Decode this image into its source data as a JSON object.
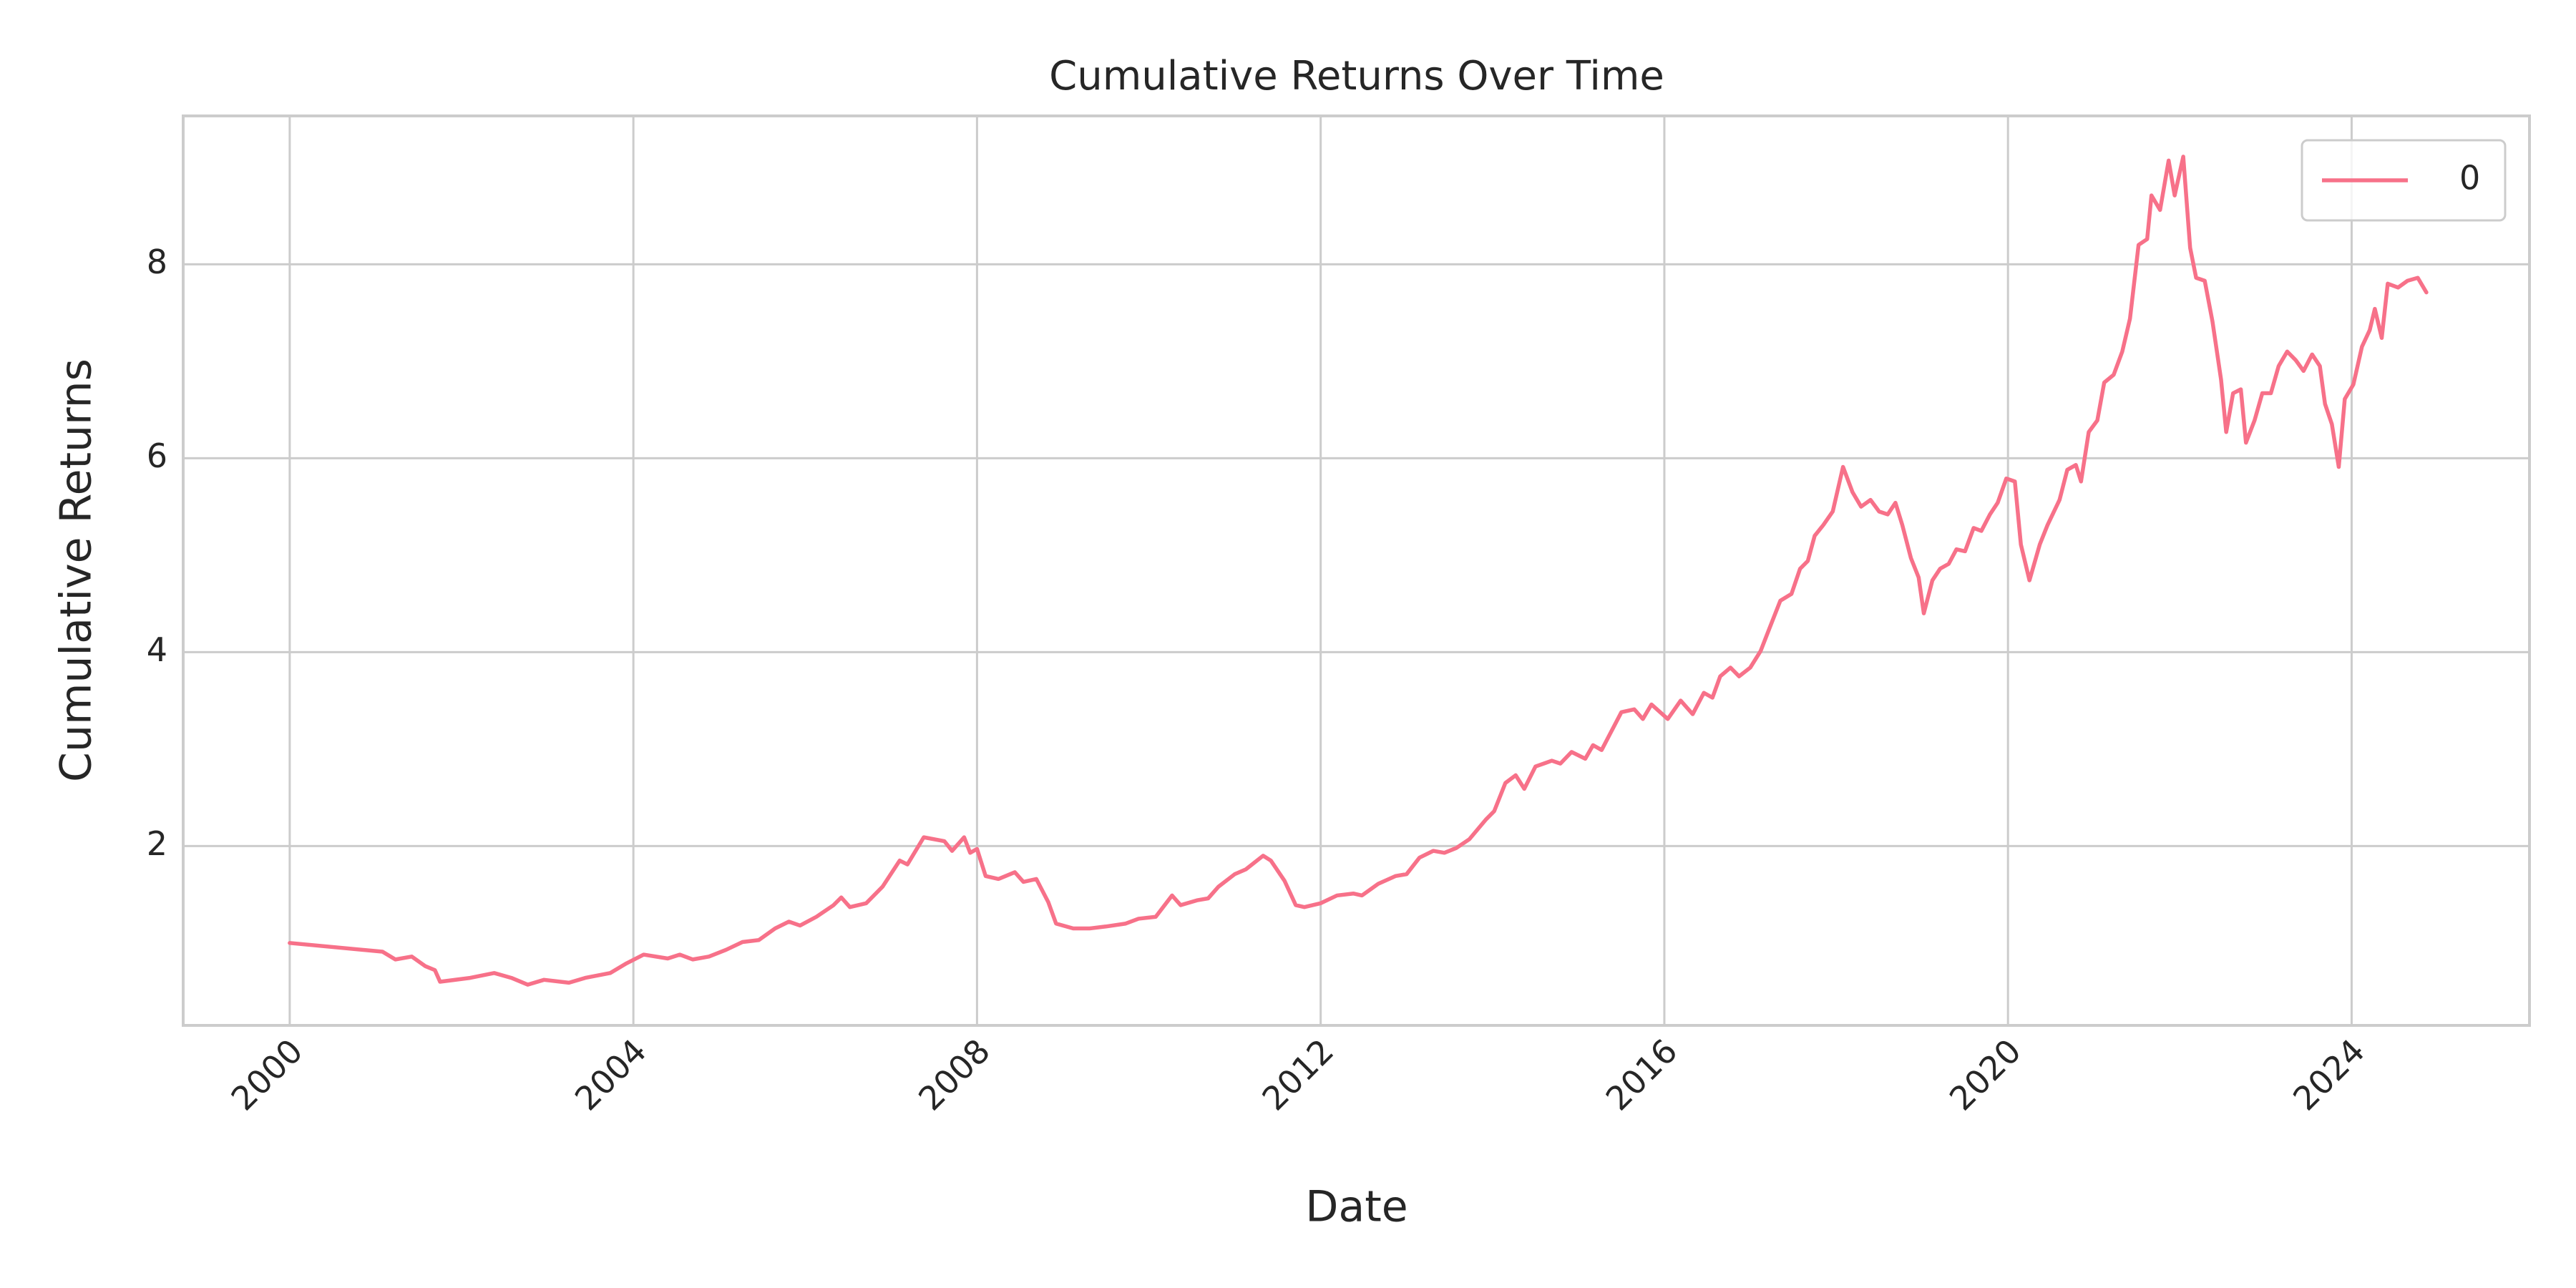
{
  "chart_data": {
    "type": "line",
    "title": "Cumulative Returns Over Time",
    "x_label": "Date",
    "y_label": "Cumulative Returns",
    "x": [
      2000.0,
      2001.08,
      2001.23,
      2001.42,
      2001.58,
      2001.69,
      2001.75,
      2002.1,
      2002.38,
      2002.58,
      2002.77,
      2002.96,
      2003.25,
      2003.44,
      2003.73,
      2003.92,
      2004.12,
      2004.4,
      2004.54,
      2004.69,
      2004.88,
      2005.08,
      2005.27,
      2005.46,
      2005.65,
      2005.81,
      2005.94,
      2006.13,
      2006.33,
      2006.42,
      2006.52,
      2006.71,
      2006.9,
      2007.1,
      2007.19,
      2007.38,
      2007.62,
      2007.71,
      2007.85,
      2007.92,
      2008.0,
      2008.1,
      2008.25,
      2008.44,
      2008.54,
      2008.69,
      2008.83,
      2008.92,
      2009.12,
      2009.31,
      2009.5,
      2009.73,
      2009.88,
      2010.08,
      2010.27,
      2010.37,
      2010.56,
      2010.69,
      2010.81,
      2011.0,
      2011.13,
      2011.33,
      2011.42,
      2011.58,
      2011.71,
      2011.81,
      2012.0,
      2012.19,
      2012.38,
      2012.48,
      2012.67,
      2012.87,
      2013.0,
      2013.15,
      2013.31,
      2013.44,
      2013.58,
      2013.73,
      2013.92,
      2014.02,
      2014.15,
      2014.27,
      2014.37,
      2014.5,
      2014.69,
      2014.79,
      2014.92,
      2015.08,
      2015.17,
      2015.27,
      2015.37,
      2015.5,
      2015.65,
      2015.75,
      2015.85,
      2016.04,
      2016.19,
      2016.33,
      2016.46,
      2016.56,
      2016.65,
      2016.77,
      2016.87,
      2017.0,
      2017.12,
      2017.23,
      2017.35,
      2017.48,
      2017.58,
      2017.67,
      2017.75,
      2017.85,
      2017.96,
      2018.08,
      2018.19,
      2018.29,
      2018.4,
      2018.5,
      2018.6,
      2018.69,
      2018.77,
      2018.87,
      2018.96,
      2019.02,
      2019.12,
      2019.21,
      2019.31,
      2019.4,
      2019.5,
      2019.6,
      2019.69,
      2019.79,
      2019.88,
      2019.98,
      2020.08,
      2020.15,
      2020.25,
      2020.37,
      2020.46,
      2020.6,
      2020.69,
      2020.79,
      2020.85,
      2020.94,
      2021.04,
      2021.12,
      2021.23,
      2021.33,
      2021.42,
      2021.52,
      2021.62,
      2021.67,
      2021.77,
      2021.87,
      2021.94,
      2022.04,
      2022.12,
      2022.19,
      2022.29,
      2022.38,
      2022.48,
      2022.54,
      2022.62,
      2022.71,
      2022.77,
      2022.87,
      2022.96,
      2023.06,
      2023.15,
      2023.25,
      2023.35,
      2023.44,
      2023.54,
      2023.63,
      2023.69,
      2023.77,
      2023.85,
      2023.92,
      2024.02,
      2024.12,
      2024.21,
      2024.27,
      2024.35,
      2024.42,
      2024.54,
      2024.65,
      2024.77,
      2024.87
    ],
    "series": [
      {
        "name": "0",
        "color": "#f77189",
        "values": [
          1.0,
          0.91,
          0.83,
          0.86,
          0.76,
          0.72,
          0.6,
          0.64,
          0.69,
          0.64,
          0.57,
          0.62,
          0.59,
          0.64,
          0.69,
          0.79,
          0.88,
          0.84,
          0.88,
          0.83,
          0.86,
          0.93,
          1.01,
          1.03,
          1.15,
          1.22,
          1.18,
          1.27,
          1.39,
          1.47,
          1.37,
          1.41,
          1.58,
          1.85,
          1.81,
          2.09,
          2.05,
          1.95,
          2.09,
          1.93,
          1.97,
          1.69,
          1.66,
          1.73,
          1.63,
          1.66,
          1.42,
          1.2,
          1.15,
          1.15,
          1.17,
          1.2,
          1.25,
          1.27,
          1.49,
          1.39,
          1.44,
          1.46,
          1.58,
          1.71,
          1.76,
          1.9,
          1.85,
          1.64,
          1.39,
          1.37,
          1.41,
          1.49,
          1.51,
          1.49,
          1.61,
          1.69,
          1.71,
          1.88,
          1.95,
          1.93,
          1.98,
          2.07,
          2.27,
          2.36,
          2.65,
          2.73,
          2.59,
          2.82,
          2.88,
          2.85,
          2.97,
          2.9,
          3.04,
          2.99,
          3.16,
          3.38,
          3.41,
          3.31,
          3.46,
          3.31,
          3.5,
          3.36,
          3.58,
          3.53,
          3.75,
          3.84,
          3.75,
          3.84,
          4.01,
          4.26,
          4.53,
          4.6,
          4.86,
          4.94,
          5.2,
          5.31,
          5.45,
          5.91,
          5.65,
          5.5,
          5.57,
          5.45,
          5.42,
          5.54,
          5.31,
          4.97,
          4.77,
          4.4,
          4.74,
          4.86,
          4.91,
          5.06,
          5.04,
          5.28,
          5.25,
          5.42,
          5.54,
          5.79,
          5.76,
          5.11,
          4.74,
          5.11,
          5.31,
          5.57,
          5.88,
          5.93,
          5.76,
          6.27,
          6.39,
          6.78,
          6.86,
          7.1,
          7.44,
          8.2,
          8.26,
          8.71,
          8.56,
          9.07,
          8.71,
          9.11,
          8.17,
          7.86,
          7.83,
          7.41,
          6.81,
          6.27,
          6.67,
          6.71,
          6.16,
          6.39,
          6.67,
          6.67,
          6.95,
          7.1,
          7.01,
          6.9,
          7.07,
          6.95,
          6.56,
          6.35,
          5.91,
          6.61,
          6.76,
          7.15,
          7.32,
          7.54,
          7.24,
          7.8,
          7.76,
          7.83,
          7.86,
          7.71
        ]
      }
    ],
    "xlim": [
      1998.76,
      2026.07
    ],
    "xticks": [
      2000,
      2004,
      2008,
      2012,
      2016,
      2020,
      2024
    ],
    "ylim": [
      0.15,
      9.53
    ],
    "yticks": [
      2,
      4,
      6,
      8
    ],
    "grid": true,
    "legend": "upper right"
  }
}
